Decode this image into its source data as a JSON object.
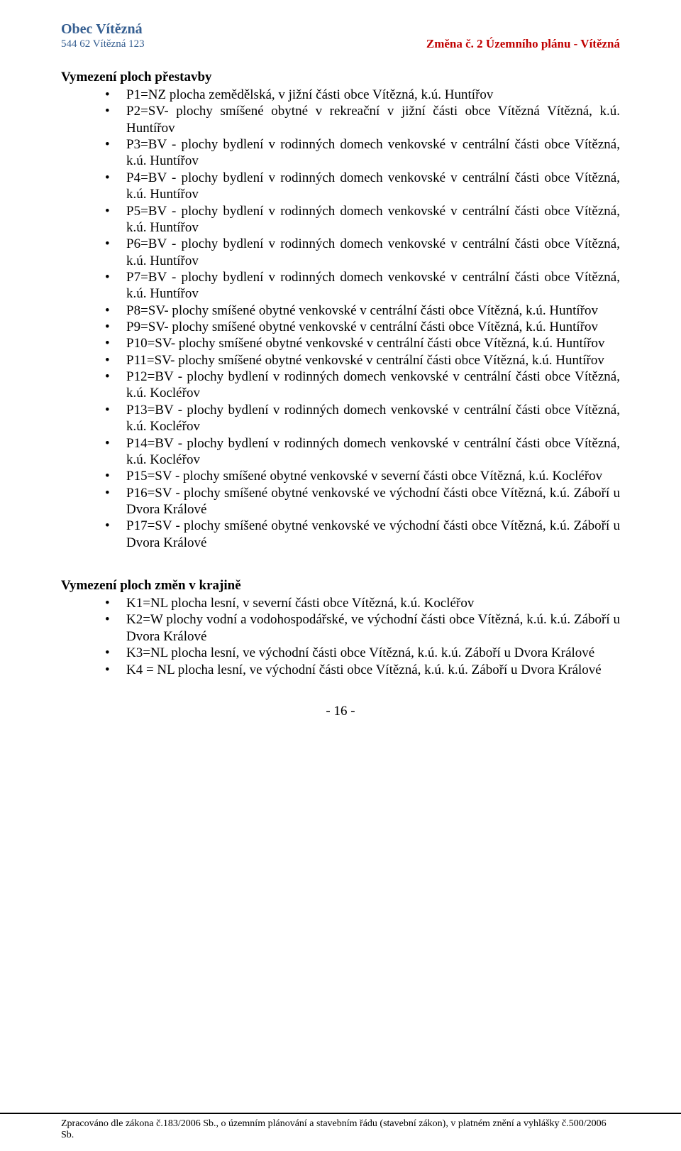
{
  "colors": {
    "header_blue": "#365f91",
    "header_red": "#c00000",
    "text": "#000000",
    "background": "#ffffff",
    "footer_rule": "#000000"
  },
  "typography": {
    "body_fontsize": 19,
    "org_name_fontsize": 20,
    "org_addr_fontsize": 15,
    "header_right_fontsize": 17,
    "footer_fontsize": 14,
    "font_family": "Times New Roman, serif"
  },
  "header": {
    "org_name": "Obec Vítězná",
    "org_addr": "544 62  Vítězná 123",
    "right": "Změna č. 2  Územního plánu - Vítězná"
  },
  "section1": {
    "title": "Vymezení ploch přestavby",
    "items": [
      "P1=NZ plocha zemědělská, v jižní části obce Vítězná, k.ú. Huntířov",
      "P2=SV- plochy smíšené obytné v rekreační v jižní části obce Vítězná Vítězná, k.ú. Huntířov",
      "P3=BV - plochy bydlení v rodinných domech venkovské v centrální části obce Vítězná, k.ú. Huntířov",
      "P4=BV - plochy bydlení v rodinných domech venkovské v centrální části obce Vítězná, k.ú. Huntířov",
      "P5=BV - plochy bydlení v rodinných domech venkovské v centrální části obce Vítězná, k.ú. Huntířov",
      "P6=BV - plochy bydlení v rodinných domech venkovské v centrální části obce Vítězná, k.ú. Huntířov",
      "P7=BV - plochy bydlení v rodinných domech venkovské v centrální části obce Vítězná, k.ú. Huntířov",
      "P8=SV- plochy smíšené obytné venkovské v centrální části obce Vítězná,  k.ú. Huntířov",
      "P9=SV- plochy smíšené obytné venkovské v centrální části obce Vítězná,  k.ú. Huntířov",
      "P10=SV- plochy smíšené obytné venkovské v centrální části obce Vítězná,  k.ú. Huntířov",
      "P11=SV- plochy smíšené obytné venkovské v centrální části obce Vítězná,  k.ú. Huntířov",
      "P12=BV - plochy bydlení v rodinných domech venkovské v centrální části obce Vítězná, k.ú. Kocléřov",
      "P13=BV - plochy bydlení v rodinných domech venkovské v centrální části obce Vítězná, k.ú. Kocléřov",
      "P14=BV - plochy bydlení v rodinných domech venkovské v centrální části obce Vítězná, k.ú. Kocléřov",
      "P15=SV - plochy smíšené obytné venkovské v severní části obce Vítězná,  k.ú. Kocléřov",
      "P16=SV - plochy smíšené obytné venkovské ve východní části obce Vítězná,  k.ú. Záboří u Dvora Králové",
      "P17=SV - plochy smíšené obytné venkovské ve východní části obce Vítězná,  k.ú. Záboří u Dvora Králové"
    ]
  },
  "section2": {
    "title": "Vymezení ploch změn v krajině",
    "items": [
      "K1=NL plocha lesní, v severní části obce Vítězná, k.ú. Kocléřov",
      "K2=W plochy vodní a vodohospodářské, ve východní části obce Vítězná, k.ú. k.ú. Záboří u Dvora Králové",
      "K3=NL plocha lesní, ve východní části obce Vítězná, k.ú. k.ú. Záboří u Dvora Králové",
      "K4 = NL plocha lesní, ve východní části obce Vítězná, k.ú. k.ú. Záboří u Dvora Králové"
    ]
  },
  "page_number": "- 16 -",
  "footer": "Zpracováno dle zákona č.183/2006 Sb., o územním plánování a stavebním řádu (stavební zákon), v platném znění a vyhlášky č.500/2006 Sb."
}
